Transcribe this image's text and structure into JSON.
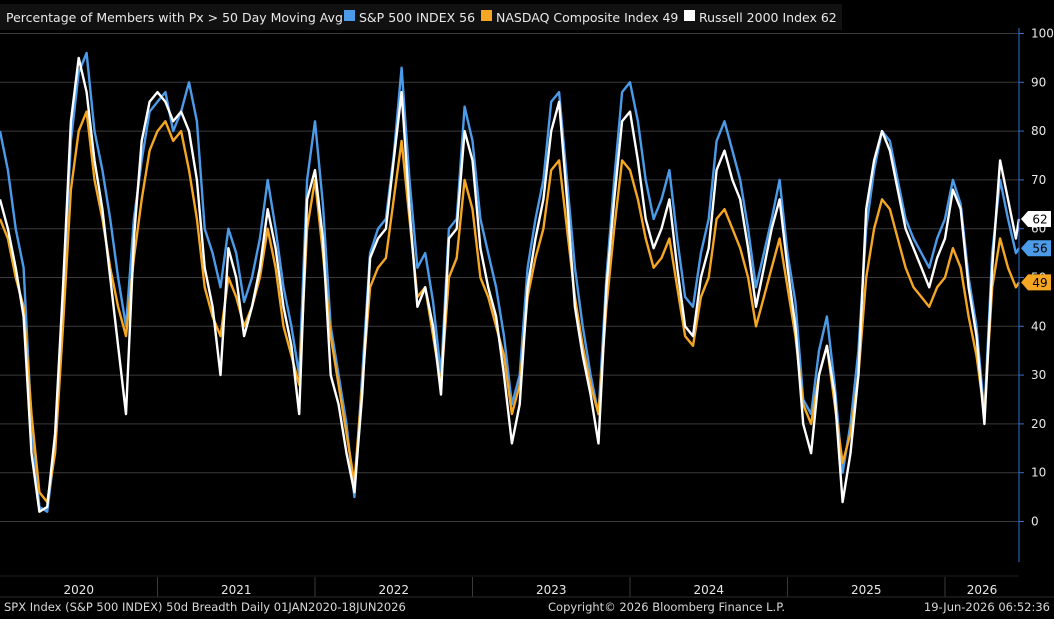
{
  "header": {
    "title": "Percentage of Members with Px > 50 Day Moving Avg"
  },
  "legend": [
    {
      "label": "S&P 500 INDEX 56",
      "color": "#4b9be8"
    },
    {
      "label": "NASDAQ Composite Index 49",
      "color": "#f5a623"
    },
    {
      "label": "Russell 2000 Index 62",
      "color": "#ffffff"
    }
  ],
  "footer": {
    "left": "SPX Index (S&P 500 INDEX) 50d Breadth Daily 01JAN2020-18JUN2026",
    "center": "Copyright© 2026 Bloomberg Finance L.P.",
    "right": "19-Jun-2026 06:52:36"
  },
  "colors": {
    "background": "#000000",
    "grid": "#3a3a3a",
    "axis": "#2f6fd0",
    "spx": "#4b9be8",
    "nasdaq": "#f5a623",
    "russell": "#ffffff",
    "text": "#e8e8e8"
  },
  "chart_data": {
    "type": "line",
    "title": "Percentage of Members with Px > 50 Day Moving Avg",
    "xlabel": "",
    "ylabel": "",
    "ylim": [
      0,
      100
    ],
    "y_ticks": [
      0,
      10,
      20,
      30,
      40,
      50,
      60,
      70,
      80,
      90,
      100
    ],
    "x_ticks": [
      "2020",
      "2021",
      "2022",
      "2023",
      "2024",
      "2025",
      "2026"
    ],
    "xlim": [
      2020.0,
      2026.47
    ],
    "grid": true,
    "legend_position": "top",
    "last_value_labels": [
      {
        "series": "Russell 2000 Index",
        "value": 62
      },
      {
        "series": "S&P 500 INDEX",
        "value": 56
      },
      {
        "series": "NASDAQ Composite Index",
        "value": 49
      }
    ],
    "series": [
      {
        "name": "S&P 500 INDEX",
        "color": "#4b9be8",
        "x": [
          2020.0,
          2020.05,
          2020.1,
          2020.15,
          2020.2,
          2020.25,
          2020.3,
          2020.35,
          2020.4,
          2020.45,
          2020.5,
          2020.55,
          2020.6,
          2020.65,
          2020.7,
          2020.75,
          2020.8,
          2020.85,
          2020.9,
          2020.95,
          2021.0,
          2021.05,
          2021.1,
          2021.15,
          2021.2,
          2021.25,
          2021.3,
          2021.35,
          2021.4,
          2021.45,
          2021.5,
          2021.55,
          2021.6,
          2021.65,
          2021.7,
          2021.75,
          2021.8,
          2021.85,
          2021.9,
          2021.95,
          2022.0,
          2022.05,
          2022.1,
          2022.15,
          2022.2,
          2022.25,
          2022.3,
          2022.35,
          2022.4,
          2022.45,
          2022.5,
          2022.55,
          2022.6,
          2022.65,
          2022.7,
          2022.75,
          2022.8,
          2022.85,
          2022.9,
          2022.95,
          2023.0,
          2023.05,
          2023.1,
          2023.15,
          2023.2,
          2023.25,
          2023.3,
          2023.35,
          2023.4,
          2023.45,
          2023.5,
          2023.55,
          2023.6,
          2023.65,
          2023.7,
          2023.75,
          2023.8,
          2023.85,
          2023.9,
          2023.95,
          2024.0,
          2024.05,
          2024.1,
          2024.15,
          2024.2,
          2024.25,
          2024.3,
          2024.35,
          2024.4,
          2024.45,
          2024.5,
          2024.55,
          2024.6,
          2024.65,
          2024.7,
          2024.75,
          2024.8,
          2024.85,
          2024.9,
          2024.95,
          2025.0,
          2025.05,
          2025.1,
          2025.15,
          2025.2,
          2025.25,
          2025.3,
          2025.35,
          2025.4,
          2025.45,
          2025.5,
          2025.55,
          2025.6,
          2025.65,
          2025.7,
          2025.75,
          2025.8,
          2025.85,
          2025.9,
          2025.95,
          2026.0,
          2026.05,
          2026.1,
          2026.15,
          2026.2,
          2026.25,
          2026.3,
          2026.35,
          2026.4,
          2026.45,
          2026.47
        ],
        "values": [
          80,
          72,
          60,
          52,
          20,
          3,
          2,
          15,
          45,
          78,
          92,
          96,
          80,
          72,
          62,
          50,
          40,
          62,
          74,
          84,
          86,
          88,
          80,
          84,
          90,
          82,
          60,
          55,
          48,
          60,
          55,
          45,
          50,
          58,
          70,
          60,
          48,
          40,
          30,
          70,
          82,
          65,
          40,
          30,
          20,
          5,
          30,
          55,
          60,
          62,
          75,
          93,
          70,
          52,
          55,
          45,
          30,
          60,
          62,
          85,
          78,
          62,
          55,
          48,
          38,
          24,
          30,
          52,
          62,
          70,
          86,
          88,
          70,
          52,
          40,
          30,
          22,
          50,
          70,
          88,
          90,
          82,
          70,
          62,
          66,
          72,
          58,
          46,
          44,
          55,
          62,
          78,
          82,
          76,
          70,
          60,
          48,
          55,
          62,
          70,
          55,
          45,
          25,
          22,
          35,
          42,
          28,
          10,
          20,
          35,
          60,
          72,
          80,
          78,
          70,
          62,
          58,
          55,
          52,
          58,
          62,
          70,
          65,
          50,
          40,
          22,
          55,
          70,
          62,
          55,
          56
        ]
      },
      {
        "name": "NASDAQ Composite Index",
        "color": "#f5a623",
        "x": [
          2020.0,
          2020.05,
          2020.1,
          2020.15,
          2020.2,
          2020.25,
          2020.3,
          2020.35,
          2020.4,
          2020.45,
          2020.5,
          2020.55,
          2020.6,
          2020.65,
          2020.7,
          2020.75,
          2020.8,
          2020.85,
          2020.9,
          2020.95,
          2021.0,
          2021.05,
          2021.1,
          2021.15,
          2021.2,
          2021.25,
          2021.3,
          2021.35,
          2021.4,
          2021.45,
          2021.5,
          2021.55,
          2021.6,
          2021.65,
          2021.7,
          2021.75,
          2021.8,
          2021.85,
          2021.9,
          2021.95,
          2022.0,
          2022.05,
          2022.1,
          2022.15,
          2022.2,
          2022.25,
          2022.3,
          2022.35,
          2022.4,
          2022.45,
          2022.5,
          2022.55,
          2022.6,
          2022.65,
          2022.7,
          2022.75,
          2022.8,
          2022.85,
          2022.9,
          2022.95,
          2023.0,
          2023.05,
          2023.1,
          2023.15,
          2023.2,
          2023.25,
          2023.3,
          2023.35,
          2023.4,
          2023.45,
          2023.5,
          2023.55,
          2023.6,
          2023.65,
          2023.7,
          2023.75,
          2023.8,
          2023.85,
          2023.9,
          2023.95,
          2024.0,
          2024.05,
          2024.1,
          2024.15,
          2024.2,
          2024.25,
          2024.3,
          2024.35,
          2024.4,
          2024.45,
          2024.5,
          2024.55,
          2024.6,
          2024.65,
          2024.7,
          2024.75,
          2024.8,
          2024.85,
          2024.9,
          2024.95,
          2025.0,
          2025.05,
          2025.1,
          2025.15,
          2025.2,
          2025.25,
          2025.3,
          2025.35,
          2025.4,
          2025.45,
          2025.5,
          2025.55,
          2025.6,
          2025.65,
          2025.7,
          2025.75,
          2025.8,
          2025.85,
          2025.9,
          2025.95,
          2026.0,
          2026.05,
          2026.1,
          2026.15,
          2026.2,
          2026.25,
          2026.3,
          2026.35,
          2026.4,
          2026.45,
          2026.47
        ],
        "values": [
          62,
          58,
          50,
          44,
          22,
          6,
          4,
          14,
          40,
          68,
          80,
          84,
          70,
          62,
          52,
          44,
          38,
          54,
          66,
          76,
          80,
          82,
          78,
          80,
          72,
          62,
          48,
          42,
          38,
          50,
          46,
          40,
          44,
          50,
          60,
          52,
          40,
          34,
          28,
          60,
          70,
          55,
          38,
          28,
          18,
          8,
          28,
          48,
          52,
          54,
          66,
          78,
          62,
          46,
          48,
          38,
          28,
          50,
          54,
          70,
          64,
          50,
          46,
          40,
          34,
          22,
          28,
          46,
          54,
          60,
          72,
          74,
          60,
          46,
          36,
          28,
          22,
          44,
          60,
          74,
          72,
          66,
          58,
          52,
          54,
          58,
          48,
          38,
          36,
          46,
          50,
          62,
          64,
          60,
          56,
          50,
          40,
          46,
          52,
          58,
          48,
          38,
          24,
          20,
          30,
          36,
          24,
          12,
          18,
          30,
          50,
          60,
          66,
          64,
          58,
          52,
          48,
          46,
          44,
          48,
          50,
          56,
          52,
          42,
          34,
          22,
          48,
          58,
          52,
          48,
          49
        ]
      },
      {
        "name": "Russell 2000 Index",
        "color": "#ffffff",
        "x": [
          2020.0,
          2020.05,
          2020.1,
          2020.15,
          2020.2,
          2020.25,
          2020.3,
          2020.35,
          2020.4,
          2020.45,
          2020.5,
          2020.55,
          2020.6,
          2020.65,
          2020.7,
          2020.75,
          2020.8,
          2020.85,
          2020.9,
          2020.95,
          2021.0,
          2021.05,
          2021.1,
          2021.15,
          2021.2,
          2021.25,
          2021.3,
          2021.35,
          2021.4,
          2021.45,
          2021.5,
          2021.55,
          2021.6,
          2021.65,
          2021.7,
          2021.75,
          2021.8,
          2021.85,
          2021.9,
          2021.95,
          2022.0,
          2022.05,
          2022.1,
          2022.15,
          2022.2,
          2022.25,
          2022.3,
          2022.35,
          2022.4,
          2022.45,
          2022.5,
          2022.55,
          2022.6,
          2022.65,
          2022.7,
          2022.75,
          2022.8,
          2022.85,
          2022.9,
          2022.95,
          2023.0,
          2023.05,
          2023.1,
          2023.15,
          2023.2,
          2023.25,
          2023.3,
          2023.35,
          2023.4,
          2023.45,
          2023.5,
          2023.55,
          2023.6,
          2023.65,
          2023.7,
          2023.75,
          2023.8,
          2023.85,
          2023.9,
          2023.95,
          2024.0,
          2024.05,
          2024.1,
          2024.15,
          2024.2,
          2024.25,
          2024.3,
          2024.35,
          2024.4,
          2024.45,
          2024.5,
          2024.55,
          2024.6,
          2024.65,
          2024.7,
          2024.75,
          2024.8,
          2024.85,
          2024.9,
          2024.95,
          2025.0,
          2025.05,
          2025.1,
          2025.15,
          2025.2,
          2025.25,
          2025.3,
          2025.35,
          2025.4,
          2025.45,
          2025.5,
          2025.55,
          2025.6,
          2025.65,
          2025.7,
          2025.75,
          2025.8,
          2025.85,
          2025.9,
          2025.95,
          2026.0,
          2026.05,
          2026.1,
          2026.15,
          2026.2,
          2026.25,
          2026.3,
          2026.35,
          2026.4,
          2026.45,
          2026.47
        ],
        "values": [
          66,
          60,
          52,
          42,
          14,
          2,
          3,
          18,
          48,
          82,
          95,
          88,
          74,
          64,
          50,
          36,
          22,
          58,
          78,
          86,
          88,
          86,
          82,
          84,
          80,
          70,
          52,
          44,
          30,
          56,
          50,
          38,
          44,
          52,
          64,
          56,
          44,
          36,
          22,
          66,
          72,
          58,
          30,
          24,
          14,
          6,
          26,
          54,
          58,
          60,
          74,
          88,
          64,
          44,
          48,
          40,
          26,
          58,
          60,
          80,
          74,
          56,
          48,
          42,
          30,
          16,
          24,
          48,
          58,
          66,
          80,
          86,
          66,
          44,
          34,
          26,
          16,
          48,
          66,
          82,
          84,
          74,
          62,
          56,
          60,
          66,
          52,
          40,
          38,
          50,
          56,
          72,
          76,
          70,
          66,
          56,
          44,
          52,
          60,
          66,
          52,
          40,
          20,
          14,
          30,
          36,
          26,
          4,
          14,
          30,
          64,
          74,
          80,
          76,
          68,
          60,
          56,
          52,
          48,
          54,
          58,
          68,
          64,
          48,
          38,
          20,
          52,
          74,
          66,
          58,
          62
        ]
      }
    ]
  }
}
